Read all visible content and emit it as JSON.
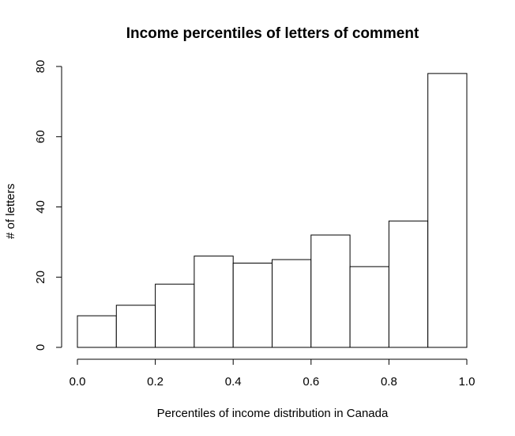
{
  "chart_data": {
    "type": "bar",
    "subtype": "histogram",
    "title": "Income percentiles of letters of comment",
    "xlabel": "Percentiles of income distribution in Canada",
    "ylabel": "# of letters",
    "bins": [
      {
        "from": 0.0,
        "to": 0.1,
        "count": 9
      },
      {
        "from": 0.1,
        "to": 0.2,
        "count": 12
      },
      {
        "from": 0.2,
        "to": 0.3,
        "count": 18
      },
      {
        "from": 0.3,
        "to": 0.4,
        "count": 26
      },
      {
        "from": 0.4,
        "to": 0.5,
        "count": 24
      },
      {
        "from": 0.5,
        "to": 0.6,
        "count": 25
      },
      {
        "from": 0.6,
        "to": 0.7,
        "count": 32
      },
      {
        "from": 0.7,
        "to": 0.8,
        "count": 23
      },
      {
        "from": 0.8,
        "to": 0.9,
        "count": 36
      },
      {
        "from": 0.9,
        "to": 1.0,
        "count": 78
      }
    ],
    "xlim": [
      0,
      1
    ],
    "ylim": [
      0,
      80
    ],
    "x_ticks": [
      {
        "value": 0.0,
        "label": "0.0"
      },
      {
        "value": 0.2,
        "label": "0.2"
      },
      {
        "value": 0.4,
        "label": "0.4"
      },
      {
        "value": 0.6,
        "label": "0.6"
      },
      {
        "value": 0.8,
        "label": "0.8"
      },
      {
        "value": 1.0,
        "label": "1.0"
      }
    ],
    "y_ticks": [
      {
        "value": 0,
        "label": "0"
      },
      {
        "value": 20,
        "label": "20"
      },
      {
        "value": 40,
        "label": "40"
      },
      {
        "value": 60,
        "label": "60"
      },
      {
        "value": 80,
        "label": "80"
      }
    ],
    "grid": false,
    "bar_fill": "#ffffff",
    "bar_stroke": "#000000"
  }
}
